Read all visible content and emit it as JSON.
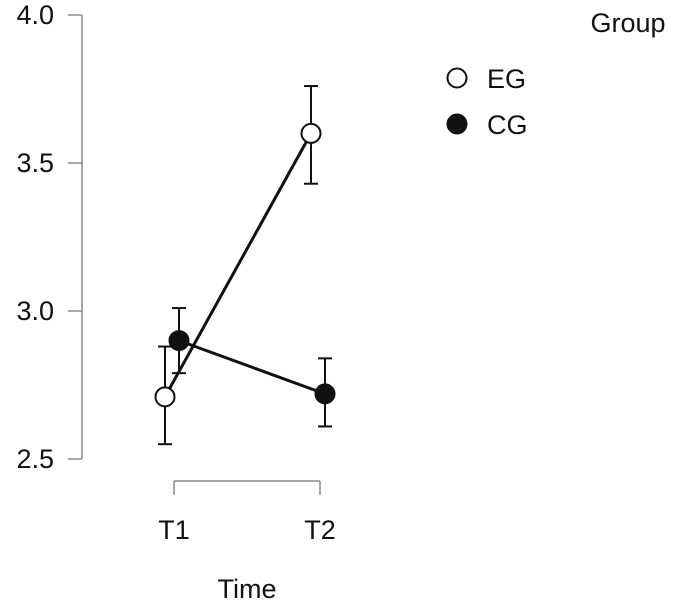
{
  "chart_data": {
    "type": "line",
    "xlabel": "Time",
    "ylabel": "",
    "categories": [
      "T1",
      "T2"
    ],
    "ylim": [
      2.5,
      4.0
    ],
    "yticks": [
      2.5,
      3.0,
      3.5,
      4.0
    ],
    "ytick_labels": [
      "2.5",
      "3.0",
      "3.5",
      "4.0"
    ],
    "grid": false,
    "legend": {
      "title": "Group",
      "placement": "top-right"
    },
    "series": [
      {
        "name": "EG",
        "marker": "open-circle",
        "values": [
          2.71,
          3.6
        ],
        "err_low": [
          2.55,
          3.43
        ],
        "err_high": [
          2.88,
          3.76
        ]
      },
      {
        "name": "CG",
        "marker": "filled-circle",
        "values": [
          2.9,
          2.72
        ],
        "err_low": [
          2.79,
          2.61
        ],
        "err_high": [
          3.01,
          2.84
        ]
      }
    ]
  }
}
